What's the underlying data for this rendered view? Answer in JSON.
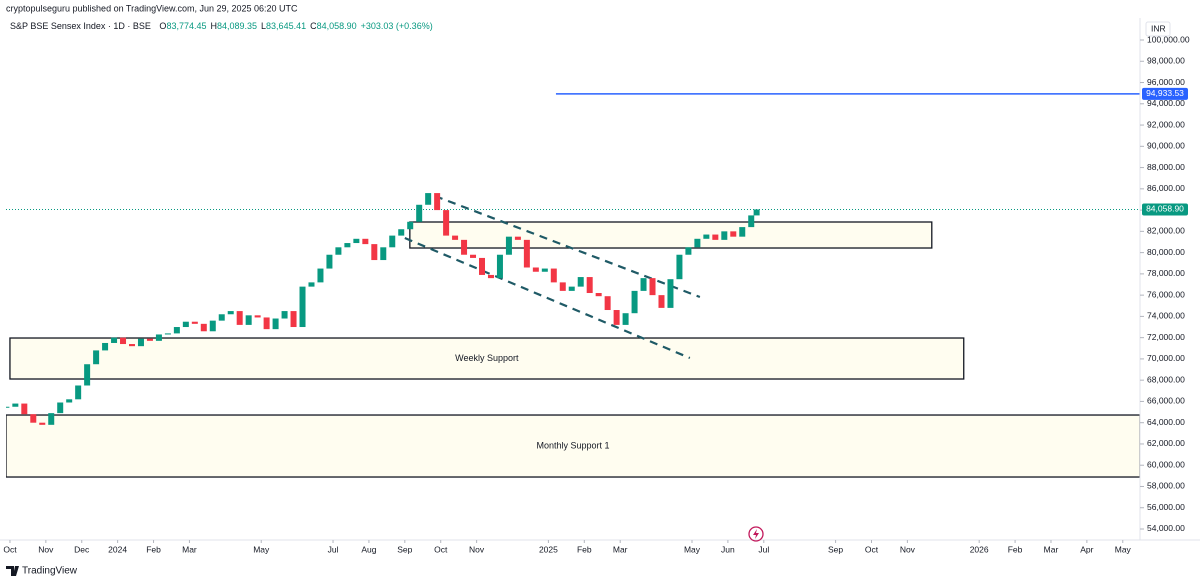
{
  "header": {
    "published": "cryptopulseguru published on TradingView.com, Jun 29, 2025 06:20 UTC",
    "symbol": "S&P BSE Sensex Index · 1D · BSE",
    "ohlc": [
      {
        "key": "O",
        "value": "83,774.45"
      },
      {
        "key": "H",
        "value": "84,089.35"
      },
      {
        "key": "L",
        "value": "83,645.41"
      },
      {
        "key": "C",
        "value": "84,058.90"
      }
    ],
    "change": "+303.03 (+0.36%)",
    "currency": "INR"
  },
  "footer": {
    "brand": "TradingView"
  },
  "chart_data": {
    "type": "candlestick",
    "up_color": "#089981",
    "down_color": "#f23645",
    "series": [
      {
        "name": "S&P BSE Sensex Index",
        "x": [
          -0.1,
          0.15,
          0.4,
          0.65,
          0.9,
          1.15,
          1.4,
          1.65,
          1.9,
          2.15,
          2.4,
          2.65,
          2.9,
          3.15,
          3.4,
          3.65,
          3.9,
          4.15,
          4.4,
          4.65,
          4.9,
          5.15,
          5.4,
          5.65,
          5.9,
          6.15,
          6.4,
          6.65,
          6.9,
          7.15,
          7.4,
          7.65,
          7.9,
          8.15,
          8.4,
          8.65,
          8.9,
          9.15,
          9.4,
          9.65,
          9.9,
          10.15,
          10.4,
          10.65,
          10.9,
          11.15,
          11.4,
          11.65,
          11.9,
          12.15,
          12.4,
          12.65,
          12.9,
          13.15,
          13.4,
          13.65,
          13.9,
          14.15,
          14.4,
          14.65,
          14.9,
          15.15,
          15.4,
          15.65,
          15.9,
          16.15,
          16.4,
          16.65,
          16.9,
          17.15,
          17.4,
          17.65,
          17.9,
          18.15,
          18.4,
          18.65,
          18.9,
          19.15,
          19.4,
          19.65,
          19.9,
          20.15,
          20.4,
          20.65,
          20.8
        ],
        "values": [
          65500,
          65800,
          64800,
          64000,
          63800,
          64900,
          65900,
          66200,
          67500,
          69500,
          70800,
          71500,
          72000,
          71400,
          71200,
          71900,
          71700,
          72300,
          72400,
          73000,
          73500,
          73300,
          72600,
          73600,
          74200,
          74500,
          73200,
          74100,
          73900,
          72800,
          73800,
          74500,
          73000,
          76800,
          77200,
          78500,
          79800,
          80500,
          80900,
          81300,
          80800,
          79300,
          80500,
          81600,
          82200,
          82900,
          84500,
          85600,
          84000,
          81600,
          81200,
          79800,
          79500,
          77900,
          77600,
          79800,
          81500,
          81200,
          78600,
          78200,
          78500,
          77200,
          76400,
          76800,
          77700,
          76200,
          75900,
          74600,
          73200,
          74300,
          76400,
          77600,
          76000,
          74800,
          77500,
          79800,
          80500,
          81300,
          81700,
          81200,
          82000,
          81500,
          82400,
          83500,
          84058.9
        ]
      }
    ],
    "xlim": [
      -0.11,
      31.48
    ],
    "xticks": [
      {
        "value": 0,
        "label": "Oct"
      },
      {
        "value": 1,
        "label": "Nov"
      },
      {
        "value": 2,
        "label": "Dec"
      },
      {
        "value": 3,
        "label": "2024"
      },
      {
        "value": 4,
        "label": "Feb"
      },
      {
        "value": 5,
        "label": "Mar"
      },
      {
        "value": 7,
        "label": "May"
      },
      {
        "value": 9,
        "label": "Jul"
      },
      {
        "value": 10,
        "label": "Aug"
      },
      {
        "value": 11,
        "label": "Sep"
      },
      {
        "value": 12,
        "label": "Oct"
      },
      {
        "value": 13,
        "label": "Nov"
      },
      {
        "value": 15,
        "label": "2025"
      },
      {
        "value": 16,
        "label": "Feb"
      },
      {
        "value": 17,
        "label": "Mar"
      },
      {
        "value": 19,
        "label": "May"
      },
      {
        "value": 20,
        "label": "Jun"
      },
      {
        "value": 21,
        "label": "Jul"
      },
      {
        "value": 23,
        "label": "Sep"
      },
      {
        "value": 24,
        "label": "Oct"
      },
      {
        "value": 25,
        "label": "Nov"
      },
      {
        "value": 27,
        "label": "2026"
      },
      {
        "value": 28,
        "label": "Feb"
      },
      {
        "value": 29,
        "label": "Mar"
      },
      {
        "value": 30,
        "label": "Apr"
      },
      {
        "value": 31,
        "label": "May"
      }
    ],
    "ylim": [
      52965,
      101130
    ],
    "yticks": [
      {
        "value": 54000,
        "label": "54,000.00"
      },
      {
        "value": 56000,
        "label": "56,000.00"
      },
      {
        "value": 58000,
        "label": "58,000.00"
      },
      {
        "value": 60000,
        "label": "60,000.00"
      },
      {
        "value": 62000,
        "label": "62,000.00"
      },
      {
        "value": 64000,
        "label": "64,000.00"
      },
      {
        "value": 66000,
        "label": "66,000.00"
      },
      {
        "value": 68000,
        "label": "68,000.00"
      },
      {
        "value": 70000,
        "label": "70,000.00"
      },
      {
        "value": 72000,
        "label": "72,000.00"
      },
      {
        "value": 74000,
        "label": "74,000.00"
      },
      {
        "value": 76000,
        "label": "76,000.00"
      },
      {
        "value": 78000,
        "label": "78,000.00"
      },
      {
        "value": 80000,
        "label": "80,000.00"
      },
      {
        "value": 82000,
        "label": "82,000.00"
      },
      {
        "value": 84000,
        "label": "84,000.00"
      },
      {
        "value": 86000,
        "label": "86,000.00"
      },
      {
        "value": 88000,
        "label": "88,000.00"
      },
      {
        "value": 90000,
        "label": "90,000.00"
      },
      {
        "value": 92000,
        "label": "92,000.00"
      },
      {
        "value": 94000,
        "label": "94,000.00"
      },
      {
        "value": 96000,
        "label": "96,000.00"
      },
      {
        "value": 98000,
        "label": "98,000.00"
      },
      {
        "value": 100000,
        "label": "100,000.00"
      }
    ],
    "grid": false,
    "zones": [
      {
        "label": "Weekly Support",
        "top": 71966,
        "bottom": 68110,
        "x": [
          0,
          26.57
        ]
      },
      {
        "label": "Monthly Support 1",
        "top": 64722,
        "bottom": 58890,
        "x": [
          -0.11,
          31.48
        ]
      },
      {
        "top": 82880,
        "bottom": 80433,
        "x": [
          11.14,
          25.68
        ]
      }
    ],
    "zone_fill": "#fffdf0",
    "trend_lines": [
      {
        "x": [
          11.84,
          19.22
        ],
        "y": [
          85326,
          75824
        ]
      },
      {
        "x": [
          11.0,
          18.94
        ],
        "y": [
          81373,
          70085
        ]
      }
    ],
    "trend_color": "#1f5a66",
    "levels": [
      {
        "value": 94933.53,
        "label": "94,933.53",
        "start": 15.21,
        "color": "#2962ff"
      }
    ],
    "last_price": {
      "value": 84058.9,
      "label": "84,058.90",
      "color": "#089981"
    }
  }
}
